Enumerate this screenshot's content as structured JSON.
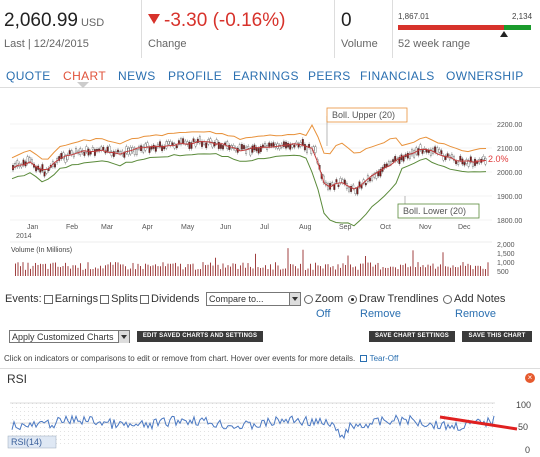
{
  "quote": {
    "price": "2,060.99",
    "currency": "USD",
    "last_label": "Last | 12/24/2015",
    "change": "-3.30 (-0.16%)",
    "change_label": "Change",
    "volume": "0",
    "volume_label": "Volume",
    "range_low": "1,867.01",
    "range_high": "2,134",
    "range_label": "52 week range",
    "range_position": 0.8,
    "colors": {
      "down": "#d7322b",
      "up": "#1a9b2c",
      "link": "#2a6fb0",
      "active_tab": "#e0533b"
    }
  },
  "tabs": [
    {
      "label": "QUOTE"
    },
    {
      "label": "CHART",
      "active": true
    },
    {
      "label": "NEWS"
    },
    {
      "label": "PROFILE"
    },
    {
      "label": "EARNINGS"
    },
    {
      "label": "PEERS"
    },
    {
      "label": "FINANCIALS"
    },
    {
      "label": "OWNERSHIP"
    }
  ],
  "chart": {
    "boll_upper": "Boll. Upper (20)",
    "boll_lower": "Boll. Lower (20)",
    "pct_label": "2.0%",
    "price_ticks": [
      "2200.00",
      "2100.00",
      "2000.00",
      "1900.00",
      "1800.00"
    ],
    "months": [
      "Jan",
      "Feb",
      "Mar",
      "Apr",
      "May",
      "Jun",
      "Jul",
      "Aug",
      "Sep",
      "Oct",
      "Nov",
      "Dec"
    ],
    "year": "2014",
    "volume_label": "Volume (In Millions)",
    "volume_ticks": [
      "2,000",
      "1,500",
      "1,000",
      "500"
    ]
  },
  "controls": {
    "events_label": "Events:",
    "earnings": "Earnings",
    "splits": "Splits",
    "dividends": "Dividends",
    "compare_value": "Compare to...",
    "zoom": "Zoom",
    "zoom_link": "Off",
    "draw_trendlines": "Draw Trendlines",
    "draw_link": "Remove",
    "add_notes": "Add Notes",
    "notes_link": "Remove",
    "custom_select": "Apply Customized Charts",
    "edit_btn": "EDIT SAVED CHARTS AND SETTINGS",
    "save_settings_btn": "SAVE CHART SETTINGS",
    "save_chart_btn": "SAVE THIS CHART",
    "hint": "Click on indicators or comparisons to edit or remove from chart. Hover over events for more details.",
    "tear_off": "Tear-Off"
  },
  "rsi": {
    "title": "RSI",
    "label": "RSI(14)",
    "ticks": [
      "100",
      "50",
      "0"
    ]
  }
}
